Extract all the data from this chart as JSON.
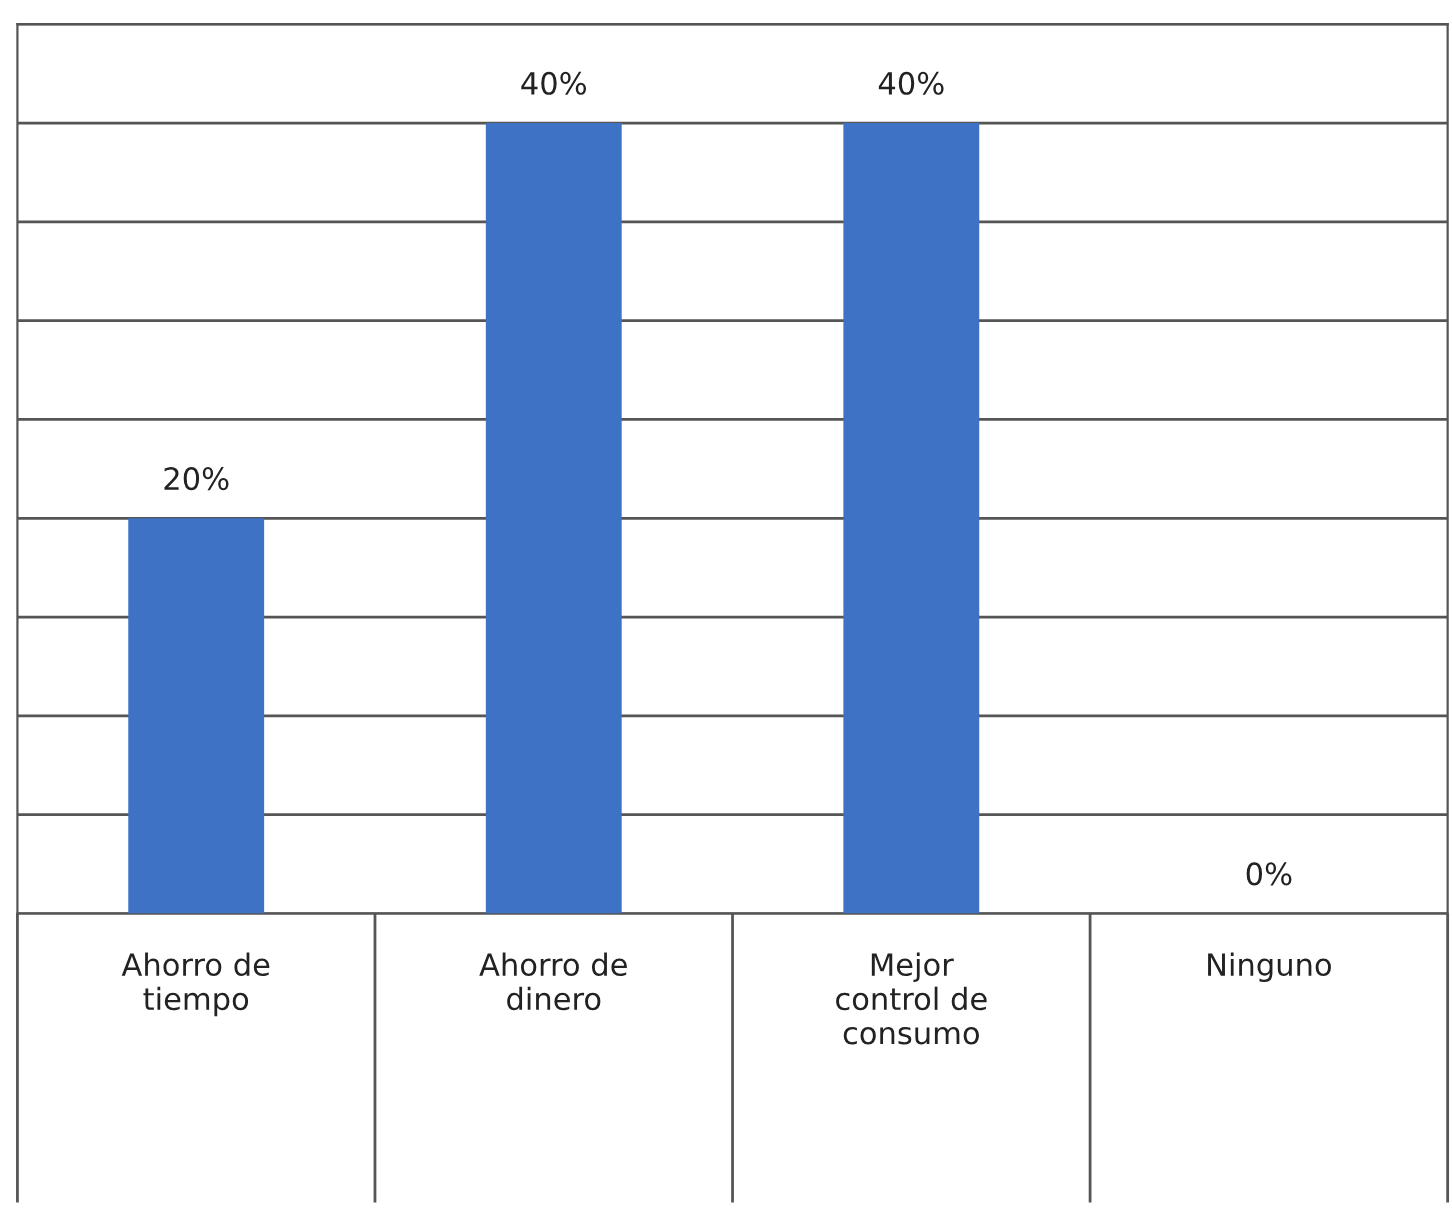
{
  "chart_data": {
    "type": "bar",
    "categories": [
      "Ahorro de\ntiempo",
      "Ahorro de\ndinero",
      "Mejor\ncontrol de\nconsumo",
      "Ninguno"
    ],
    "values": [
      20,
      40,
      40,
      0
    ],
    "value_labels": [
      "20%",
      "40%",
      "40%",
      "0%"
    ],
    "color": "#3d72c4",
    "ylim": [
      0,
      45
    ],
    "yticks": [
      {
        "value": 0,
        "label": null
      },
      {
        "value": 5,
        "label": null
      },
      {
        "value": 10,
        "label": null
      },
      {
        "value": 15,
        "label": null
      },
      {
        "value": 20,
        "label": null
      },
      {
        "value": 25,
        "label": null
      },
      {
        "value": 30,
        "label": null
      },
      {
        "value": 35,
        "label": null
      },
      {
        "value": 40,
        "label": null
      },
      {
        "value": 45,
        "label": null
      }
    ],
    "grid": "y",
    "tick_labels": "x"
  }
}
